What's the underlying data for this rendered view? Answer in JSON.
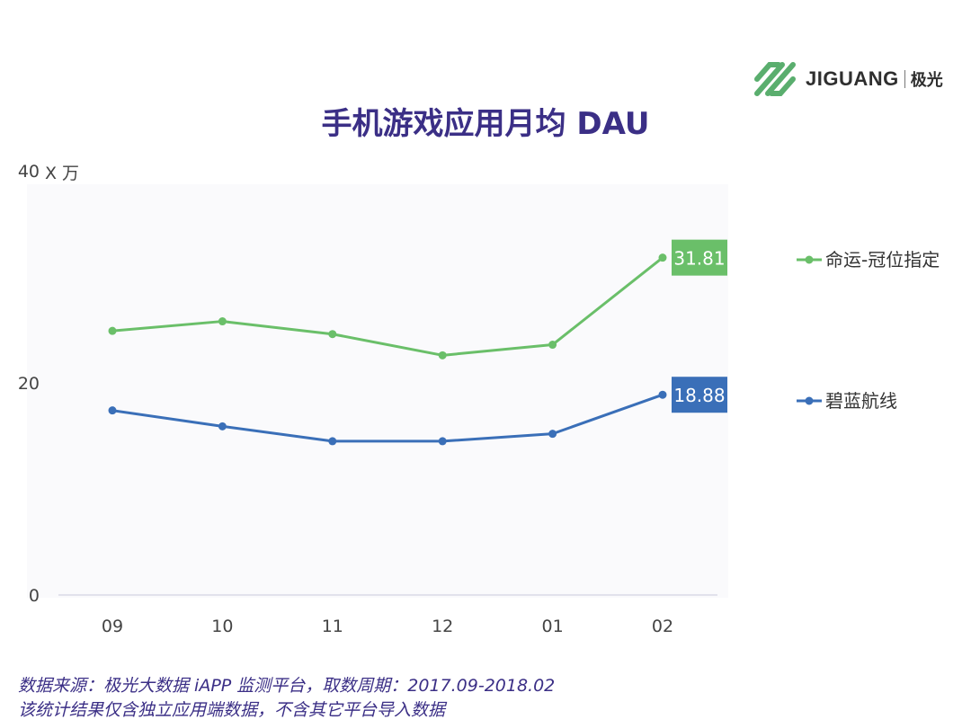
{
  "brand": {
    "name": "JIGUANG",
    "name_cn": "极光",
    "colors": {
      "logo": "#5aae6e"
    }
  },
  "page_title": "手机游戏应用月均 DAU",
  "footer": {
    "line1": "数据来源：极光大数据 iAPP 监测平台，取数周期：2017.09-2018.02",
    "line2": "该统计结果仅含独立应用端数据，不含其它平台导入数据"
  },
  "chart_data": {
    "type": "line",
    "title": "手机游戏应用月均 DAU",
    "unit_label": "X 万",
    "categories": [
      "09",
      "10",
      "11",
      "12",
      "01",
      "02"
    ],
    "y_ticks": [
      "0",
      "20",
      "40"
    ],
    "ylim": [
      0,
      40
    ],
    "grid": false,
    "legend_position": "right",
    "series": [
      {
        "name": "命运-冠位指定",
        "color": "#6abf69",
        "values": [
          24.9,
          25.8,
          24.6,
          22.6,
          23.6,
          31.81
        ],
        "end_label": "31.81"
      },
      {
        "name": "碧蓝航线",
        "color": "#3a6fb8",
        "values": [
          17.4,
          15.9,
          14.5,
          14.5,
          15.2,
          18.88
        ],
        "end_label": "18.88"
      }
    ]
  }
}
